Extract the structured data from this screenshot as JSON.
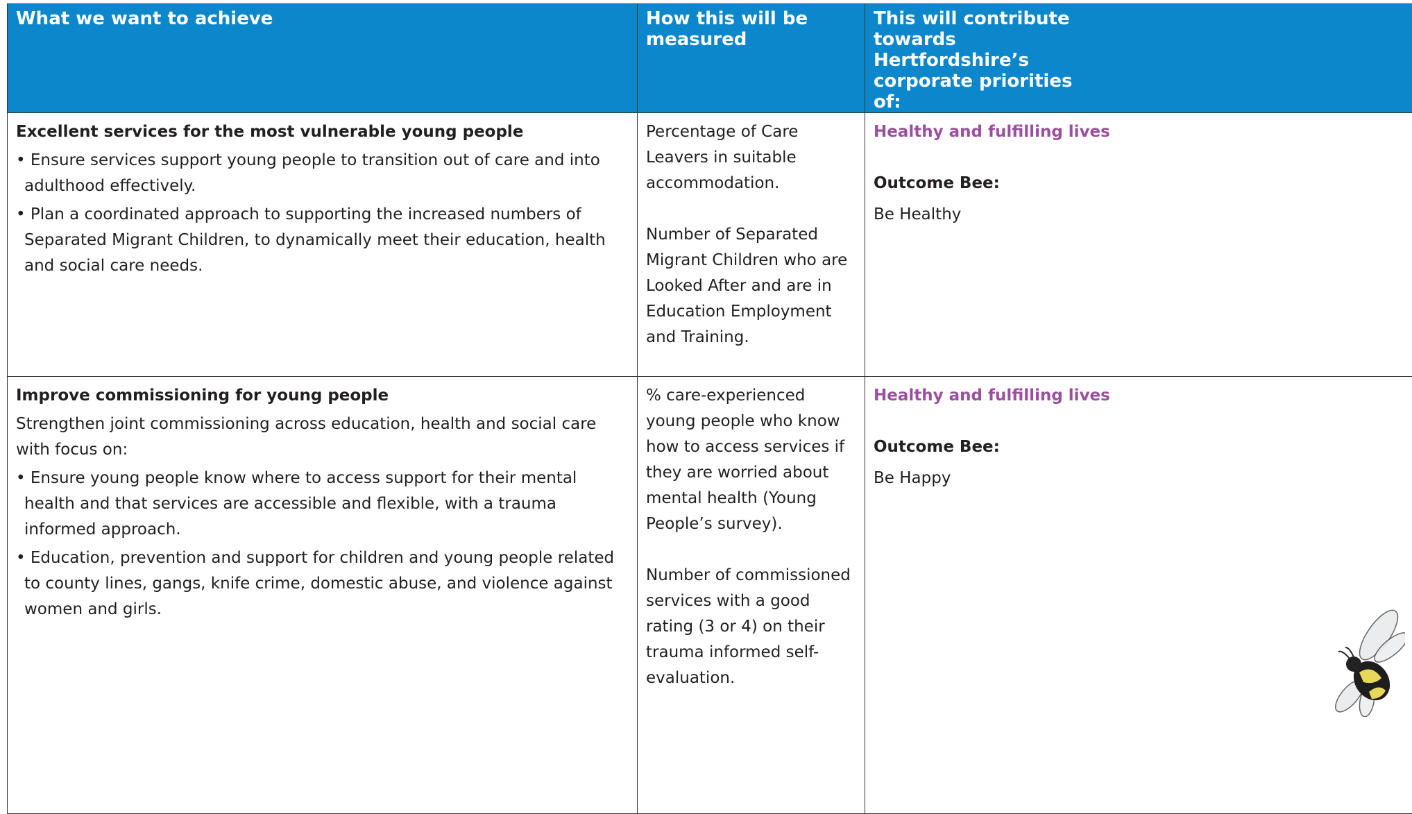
{
  "table": {
    "header": [
      "What we want to achieve",
      "How this will be measured",
      "This will contribute towards Hertfordshire’s corporate priorities of:"
    ],
    "rows": [
      {
        "title": "Excellent services for the most vulnerable young people",
        "intro": [],
        "bullets": [
          "• Ensure services support young people to transition out of care and into adulthood effectively.",
          "• Plan a coordinated approach to supporting the increased numbers of Separated Migrant Children, to dynamically meet their education, health and social care needs."
        ],
        "measures": [
          "Percentage of Care Leavers in suitable accommodation.",
          "Number of Separated Migrant Children who are Looked After and are in Education Employment and Training."
        ],
        "priority": "Healthy and fulfilling lives",
        "outcome_label": "Outcome Bee:",
        "outcome": "Be Healthy"
      },
      {
        "title": "Improve commissioning for young people",
        "intro": [
          "Strengthen joint commissioning across education, health and social care with focus on:"
        ],
        "bullets": [
          "• Ensure young people know where to access support for their mental health and that services are accessible and flexible, with a trauma informed approach.",
          "• Education, prevention and support for children and young people related to county lines, gangs, knife crime, domestic abuse, and violence against women and girls."
        ],
        "measures": [
          "% care-experienced young people who know how to access services if they are worried about mental health (Young People’s survey).",
          "Number of commissioned services with a good rating (3 or 4) on their trauma informed self-evaluation."
        ],
        "priority": "Healthy and fulfilling lives",
        "outcome_label": "Outcome Bee:",
        "outcome": "Be Happy"
      }
    ]
  }
}
